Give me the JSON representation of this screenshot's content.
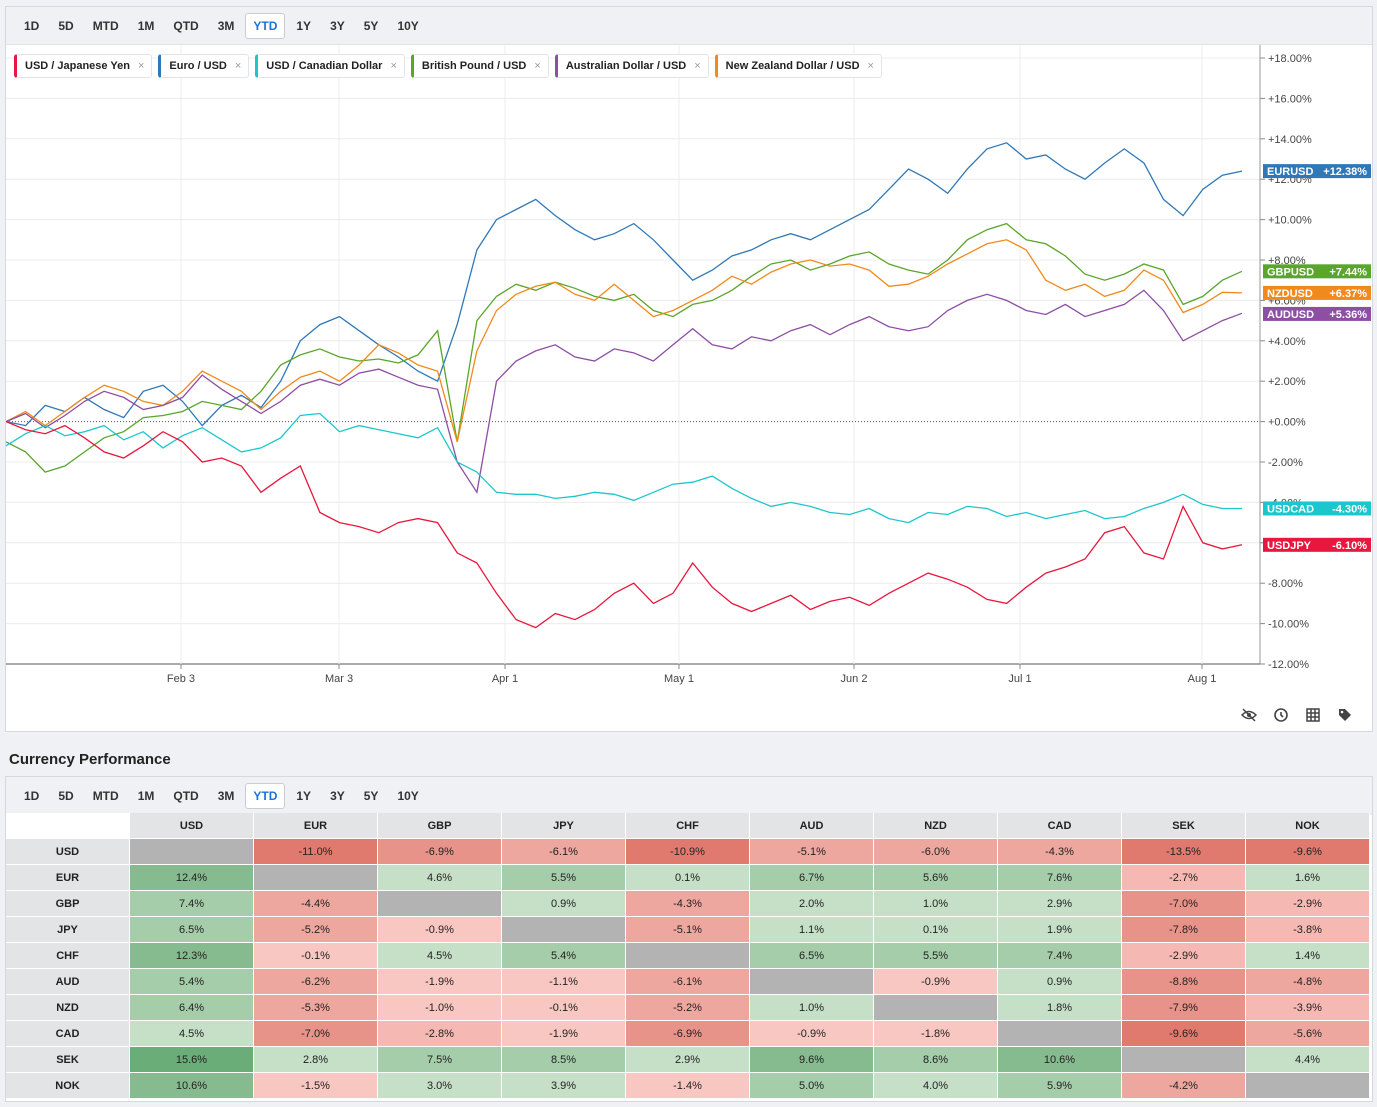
{
  "ranges": [
    "1D",
    "5D",
    "MTD",
    "1M",
    "QTD",
    "3M",
    "YTD",
    "1Y",
    "3Y",
    "5Y",
    "10Y"
  ],
  "active_range": "YTD",
  "legend": [
    {
      "label": "USD / Japanese Yen",
      "color": "#e8173d"
    },
    {
      "label": "Euro / USD",
      "color": "#2f78b7"
    },
    {
      "label": "USD / Canadian Dollar",
      "color": "#1bc7cc"
    },
    {
      "label": "British Pound / USD",
      "color": "#5aa52b"
    },
    {
      "label": "Australian Dollar / USD",
      "color": "#8d4ea3"
    },
    {
      "label": "New Zealand Dollar / USD",
      "color": "#f08a1c"
    }
  ],
  "legend_close": "×",
  "chart_data": {
    "type": "line",
    "x_labels": [
      "Feb 3",
      "Mar 3",
      "Apr 1",
      "May 1",
      "Jun 2",
      "Jul 1",
      "Aug 1"
    ],
    "y_ticks": [
      "+18.00%",
      "+16.00%",
      "+14.00%",
      "+12.00%",
      "+10.00%",
      "+8.00%",
      "+6.00%",
      "+4.00%",
      "+2.00%",
      "+0.00%",
      "-2.00%",
      "-4.00%",
      "-6.00%",
      "-8.00%",
      "-10.00%",
      "-12.00%"
    ],
    "ylim": [
      -12,
      18
    ],
    "series": [
      {
        "name": "EURUSD",
        "color": "#2f78b7",
        "last": "+12.38%",
        "values": [
          0,
          -0.2,
          0.8,
          0.5,
          1.2,
          0.6,
          0.2,
          1.5,
          1.8,
          1.0,
          -0.2,
          0.8,
          1.3,
          0.7,
          2.0,
          4.0,
          4.8,
          5.2,
          4.5,
          3.8,
          3.2,
          2.5,
          2.0,
          4.8,
          8.5,
          10.0,
          10.5,
          11.0,
          10.2,
          9.5,
          9.0,
          9.3,
          9.8,
          9.0,
          8.0,
          7.0,
          7.5,
          8.2,
          8.5,
          9.0,
          9.3,
          9.0,
          9.5,
          10.0,
          10.5,
          11.5,
          12.5,
          12.0,
          11.3,
          12.5,
          13.5,
          13.8,
          13.0,
          13.2,
          12.5,
          12.0,
          12.8,
          13.5,
          12.8,
          11.0,
          10.2,
          11.5,
          12.2,
          12.4
        ]
      },
      {
        "name": "GBPUSD",
        "color": "#5aa52b",
        "last": "+7.44%",
        "values": [
          -1.0,
          -1.5,
          -2.5,
          -2.2,
          -1.5,
          -0.8,
          -0.5,
          0.2,
          0.3,
          0.5,
          1.0,
          0.8,
          0.6,
          1.5,
          2.8,
          3.3,
          3.6,
          3.2,
          3.0,
          3.1,
          2.9,
          3.3,
          4.5,
          -1.0,
          5.0,
          6.2,
          6.8,
          6.5,
          6.9,
          6.6,
          6.2,
          6.0,
          6.3,
          5.5,
          5.2,
          5.8,
          6.0,
          6.5,
          7.2,
          7.8,
          8.0,
          7.5,
          7.8,
          8.2,
          8.4,
          7.8,
          7.5,
          7.3,
          8.0,
          9.0,
          9.5,
          9.8,
          9.0,
          8.8,
          8.2,
          7.3,
          7.0,
          7.3,
          7.8,
          7.5,
          5.8,
          6.2,
          7.0,
          7.44
        ]
      },
      {
        "name": "NZDUSD",
        "color": "#f08a1c",
        "last": "+6.37%",
        "values": [
          0,
          0.5,
          -0.2,
          0.5,
          1.2,
          1.8,
          1.5,
          1.0,
          0.8,
          1.5,
          2.5,
          2.0,
          1.5,
          0.6,
          1.5,
          2.2,
          2.5,
          2.0,
          2.8,
          3.8,
          3.4,
          2.8,
          2.5,
          -1.0,
          3.5,
          5.5,
          6.3,
          6.7,
          6.9,
          6.3,
          6.0,
          6.8,
          6.0,
          5.2,
          5.5,
          6.0,
          6.5,
          7.2,
          6.8,
          7.4,
          7.8,
          8.0,
          7.7,
          7.8,
          7.5,
          6.7,
          6.8,
          7.2,
          7.8,
          8.3,
          8.8,
          9.0,
          8.5,
          7.0,
          6.5,
          6.8,
          6.2,
          6.5,
          7.5,
          7.0,
          5.4,
          5.8,
          6.4,
          6.37
        ]
      },
      {
        "name": "AUDUSD",
        "color": "#8d4ea3",
        "last": "+5.36%",
        "values": [
          0,
          0.4,
          -0.3,
          0.3,
          1.0,
          1.5,
          1.2,
          0.6,
          0.8,
          1.2,
          2.3,
          1.6,
          1.0,
          0.4,
          1.0,
          1.8,
          2.1,
          1.8,
          2.4,
          2.6,
          2.2,
          1.8,
          1.6,
          -2.0,
          -3.5,
          2.0,
          3.0,
          3.5,
          3.8,
          3.2,
          3.0,
          3.6,
          3.4,
          3.0,
          3.8,
          4.6,
          3.8,
          3.6,
          4.2,
          4.0,
          4.5,
          4.8,
          4.3,
          4.8,
          5.2,
          4.7,
          4.5,
          4.7,
          5.5,
          6.0,
          6.3,
          6.0,
          5.5,
          5.3,
          5.8,
          5.2,
          5.5,
          5.8,
          6.5,
          5.5,
          4.0,
          4.5,
          5.0,
          5.36
        ]
      },
      {
        "name": "USDCAD",
        "color": "#1bc7cc",
        "last": "-4.30%",
        "values": [
          -1.2,
          -0.6,
          -0.2,
          -0.7,
          -0.5,
          -0.2,
          -0.9,
          -0.5,
          -1.3,
          -0.7,
          -0.3,
          -0.9,
          -1.5,
          -1.3,
          -0.8,
          0.3,
          0.4,
          -0.5,
          -0.2,
          -0.4,
          -0.6,
          -0.8,
          -0.3,
          -2.0,
          -2.5,
          -3.5,
          -3.6,
          -3.6,
          -3.8,
          -3.7,
          -3.5,
          -3.6,
          -3.9,
          -3.5,
          -3.1,
          -3.0,
          -2.7,
          -3.3,
          -3.8,
          -4.2,
          -4.0,
          -4.2,
          -4.5,
          -4.6,
          -4.3,
          -4.8,
          -5.0,
          -4.5,
          -4.6,
          -4.2,
          -4.3,
          -4.7,
          -4.5,
          -4.8,
          -4.6,
          -4.4,
          -4.8,
          -4.7,
          -4.3,
          -4.0,
          -3.6,
          -4.1,
          -4.3,
          -4.3
        ]
      },
      {
        "name": "USDJPY",
        "color": "#e8173d",
        "last": "-6.10%",
        "values": [
          0,
          -0.4,
          -0.6,
          -0.2,
          -0.8,
          -1.5,
          -1.8,
          -1.2,
          -0.5,
          -1.0,
          -2.0,
          -1.8,
          -2.2,
          -3.5,
          -2.8,
          -2.2,
          -4.5,
          -5.0,
          -5.2,
          -5.5,
          -5.0,
          -4.8,
          -5.0,
          -6.5,
          -7.0,
          -8.5,
          -9.8,
          -10.2,
          -9.5,
          -9.8,
          -9.3,
          -8.5,
          -8.0,
          -9.0,
          -8.5,
          -7.0,
          -8.2,
          -9.0,
          -9.4,
          -9.0,
          -8.6,
          -9.3,
          -8.9,
          -8.7,
          -9.1,
          -8.5,
          -8.0,
          -7.5,
          -7.8,
          -8.2,
          -8.8,
          -9.0,
          -8.2,
          -7.5,
          -7.2,
          -6.8,
          -5.5,
          -5.2,
          -6.5,
          -6.8,
          -4.2,
          -6.0,
          -6.3,
          -6.1
        ]
      }
    ]
  },
  "toolbar_icons": [
    "eye-off-icon",
    "history-icon",
    "grid-icon",
    "tags-icon"
  ],
  "performance": {
    "title": "Currency Performance",
    "columns": [
      "USD",
      "EUR",
      "GBP",
      "JPY",
      "CHF",
      "AUD",
      "NZD",
      "CAD",
      "SEK",
      "NOK"
    ],
    "rows": [
      {
        "label": "USD",
        "values": [
          "",
          "-11.0%",
          "-6.9%",
          "-6.1%",
          "-10.9%",
          "-5.1%",
          "-6.0%",
          "-4.3%",
          "-13.5%",
          "-9.6%"
        ]
      },
      {
        "label": "EUR",
        "values": [
          "12.4%",
          "",
          "4.6%",
          "5.5%",
          "0.1%",
          "6.7%",
          "5.6%",
          "7.6%",
          "-2.7%",
          "1.6%"
        ]
      },
      {
        "label": "GBP",
        "values": [
          "7.4%",
          "-4.4%",
          "",
          "0.9%",
          "-4.3%",
          "2.0%",
          "1.0%",
          "2.9%",
          "-7.0%",
          "-2.9%"
        ]
      },
      {
        "label": "JPY",
        "values": [
          "6.5%",
          "-5.2%",
          "-0.9%",
          "",
          "-5.1%",
          "1.1%",
          "0.1%",
          "1.9%",
          "-7.8%",
          "-3.8%"
        ]
      },
      {
        "label": "CHF",
        "values": [
          "12.3%",
          "-0.1%",
          "4.5%",
          "5.4%",
          "",
          "6.5%",
          "5.5%",
          "7.4%",
          "-2.9%",
          "1.4%"
        ]
      },
      {
        "label": "AUD",
        "values": [
          "5.4%",
          "-6.2%",
          "-1.9%",
          "-1.1%",
          "-6.1%",
          "",
          "-0.9%",
          "0.9%",
          "-8.8%",
          "-4.8%"
        ]
      },
      {
        "label": "NZD",
        "values": [
          "6.4%",
          "-5.3%",
          "-1.0%",
          "-0.1%",
          "-5.2%",
          "1.0%",
          "",
          "1.8%",
          "-7.9%",
          "-3.9%"
        ]
      },
      {
        "label": "CAD",
        "values": [
          "4.5%",
          "-7.0%",
          "-2.8%",
          "-1.9%",
          "-6.9%",
          "-0.9%",
          "-1.8%",
          "",
          "-9.6%",
          "-5.6%"
        ]
      },
      {
        "label": "SEK",
        "values": [
          "15.6%",
          "2.8%",
          "7.5%",
          "8.5%",
          "2.9%",
          "9.6%",
          "8.6%",
          "10.6%",
          "",
          "4.4%"
        ]
      },
      {
        "label": "NOK",
        "values": [
          "10.6%",
          "-1.5%",
          "3.0%",
          "3.9%",
          "-1.4%",
          "5.0%",
          "4.0%",
          "5.9%",
          "-4.2%",
          ""
        ]
      }
    ]
  }
}
